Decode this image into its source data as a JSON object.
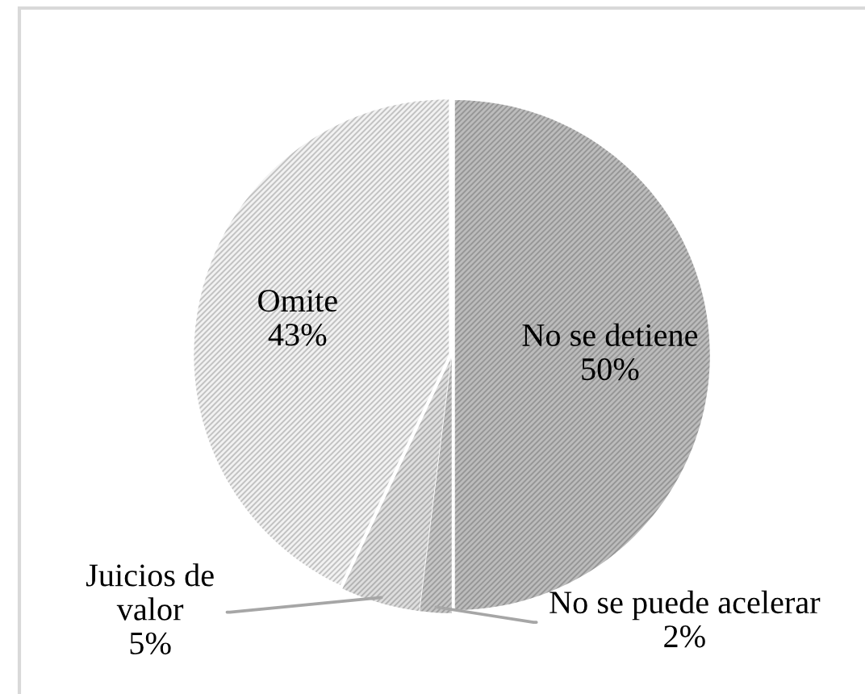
{
  "chart_data": {
    "type": "pie",
    "categories": [
      "No se detiene",
      "No se puede acelerar",
      "Juicios de\nvalor",
      "Omite"
    ],
    "values": [
      50,
      2,
      5,
      43
    ],
    "value_labels": [
      "50%",
      "2%",
      "5%",
      "43%"
    ],
    "colors": [
      "#bcbcbc",
      "#c6c6c6",
      "#dedede",
      "#f2f2f2"
    ]
  }
}
